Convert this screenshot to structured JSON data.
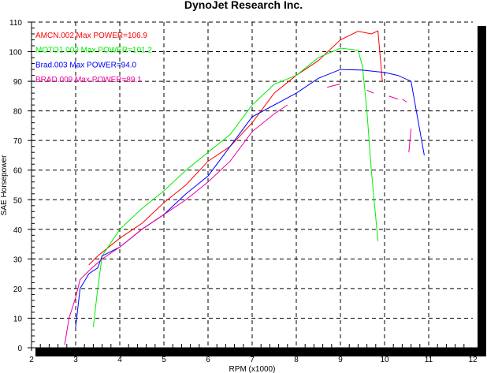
{
  "chart_data": {
    "type": "line",
    "title": "DynoJet Research Inc.",
    "xlabel": "RPM (x1000)",
    "ylabel": "SAE Horsepower",
    "xlim": [
      2,
      12
    ],
    "ylim": [
      0,
      110
    ],
    "xticks": [
      "2",
      "3",
      "4",
      "5",
      "6",
      "7",
      "8",
      "9",
      "10",
      "11",
      "12"
    ],
    "yticks": [
      "0",
      "10",
      "20",
      "30",
      "40",
      "50",
      "60",
      "70",
      "80",
      "90",
      "100",
      "110"
    ],
    "grid": true,
    "legend_position": "top-left",
    "series": [
      {
        "name": "AMCN.002",
        "legend": "AMCN.002  Max POWER=106.9",
        "color": "#ff0000",
        "segments": [
          [
            [
              3.3,
              28
            ],
            [
              3.5,
              31
            ],
            [
              4,
              37
            ],
            [
              4.5,
              42
            ],
            [
              5,
              49
            ],
            [
              5.5,
              55
            ],
            [
              6,
              63
            ],
            [
              6.5,
              68
            ],
            [
              7,
              76
            ],
            [
              7.5,
              86
            ],
            [
              8,
              92
            ],
            [
              8.5,
              97
            ],
            [
              9,
              104
            ],
            [
              9.4,
              106.9
            ],
            [
              9.7,
              106
            ],
            [
              9.85,
              107
            ],
            [
              9.95,
              90
            ]
          ]
        ]
      },
      {
        "name": "MOTO1.003",
        "legend": "MOTO1.003  Max POWER=101.2",
        "color": "#00ee00",
        "segments": [
          [
            [
              3.4,
              7
            ],
            [
              3.5,
              20
            ],
            [
              3.6,
              31
            ],
            [
              4,
              40
            ],
            [
              4.5,
              47
            ],
            [
              5,
              53
            ],
            [
              5.5,
              60
            ],
            [
              6,
              66
            ],
            [
              6.5,
              72
            ],
            [
              7,
              82
            ],
            [
              7.5,
              89
            ],
            [
              8,
              92
            ],
            [
              8.5,
              98
            ],
            [
              9,
              101.2
            ],
            [
              9.4,
              100.5
            ],
            [
              9.5,
              95
            ],
            [
              9.6,
              80
            ],
            [
              9.7,
              60
            ],
            [
              9.85,
              36
            ]
          ]
        ]
      },
      {
        "name": "Brad.003",
        "legend": "Brad.003  Max POWER=94.0",
        "color": "#0000ff",
        "segments": [
          [
            [
              3,
              7
            ],
            [
              3.1,
              20
            ],
            [
              3.3,
              25
            ],
            [
              3.5,
              27
            ],
            [
              3.6,
              31
            ],
            [
              4,
              34
            ],
            [
              4.5,
              40
            ],
            [
              5,
              45
            ],
            [
              5.5,
              52
            ],
            [
              6,
              58
            ],
            [
              6.5,
              68
            ],
            [
              7,
              78
            ],
            [
              7.5,
              82
            ],
            [
              8,
              86
            ],
            [
              8.5,
              91
            ],
            [
              9,
              94
            ],
            [
              9.5,
              93.8
            ],
            [
              10,
              93
            ],
            [
              10.3,
              92
            ],
            [
              10.6,
              90
            ],
            [
              10.9,
              65
            ]
          ]
        ]
      },
      {
        "name": "BRAD.009",
        "legend": "BRAD.009  Max POWER=89.1",
        "color": "#ee0099",
        "segments": [
          [
            [
              2.75,
              1
            ],
            [
              2.85,
              10
            ],
            [
              3,
              17
            ],
            [
              3.1,
              23
            ],
            [
              3.3,
              26
            ],
            [
              3.6,
              30
            ],
            [
              4,
              34
            ],
            [
              4.5,
              40
            ],
            [
              5,
              45
            ],
            [
              5.5,
              50
            ],
            [
              6,
              56
            ],
            [
              6.5,
              63
            ],
            [
              7,
              73
            ],
            [
              7.5,
              79
            ],
            [
              7.8,
              82
            ]
          ],
          [
            [
              8.7,
              88
            ],
            [
              9,
              89.1
            ]
          ],
          [
            [
              9.6,
              87
            ],
            [
              9.75,
              86
            ]
          ],
          [
            [
              10.1,
              85
            ],
            [
              10.3,
              84
            ]
          ],
          [
            [
              10.4,
              84
            ],
            [
              10.5,
              83
            ]
          ],
          [
            [
              10.6,
              74
            ],
            [
              10.55,
              66
            ]
          ]
        ]
      }
    ]
  }
}
